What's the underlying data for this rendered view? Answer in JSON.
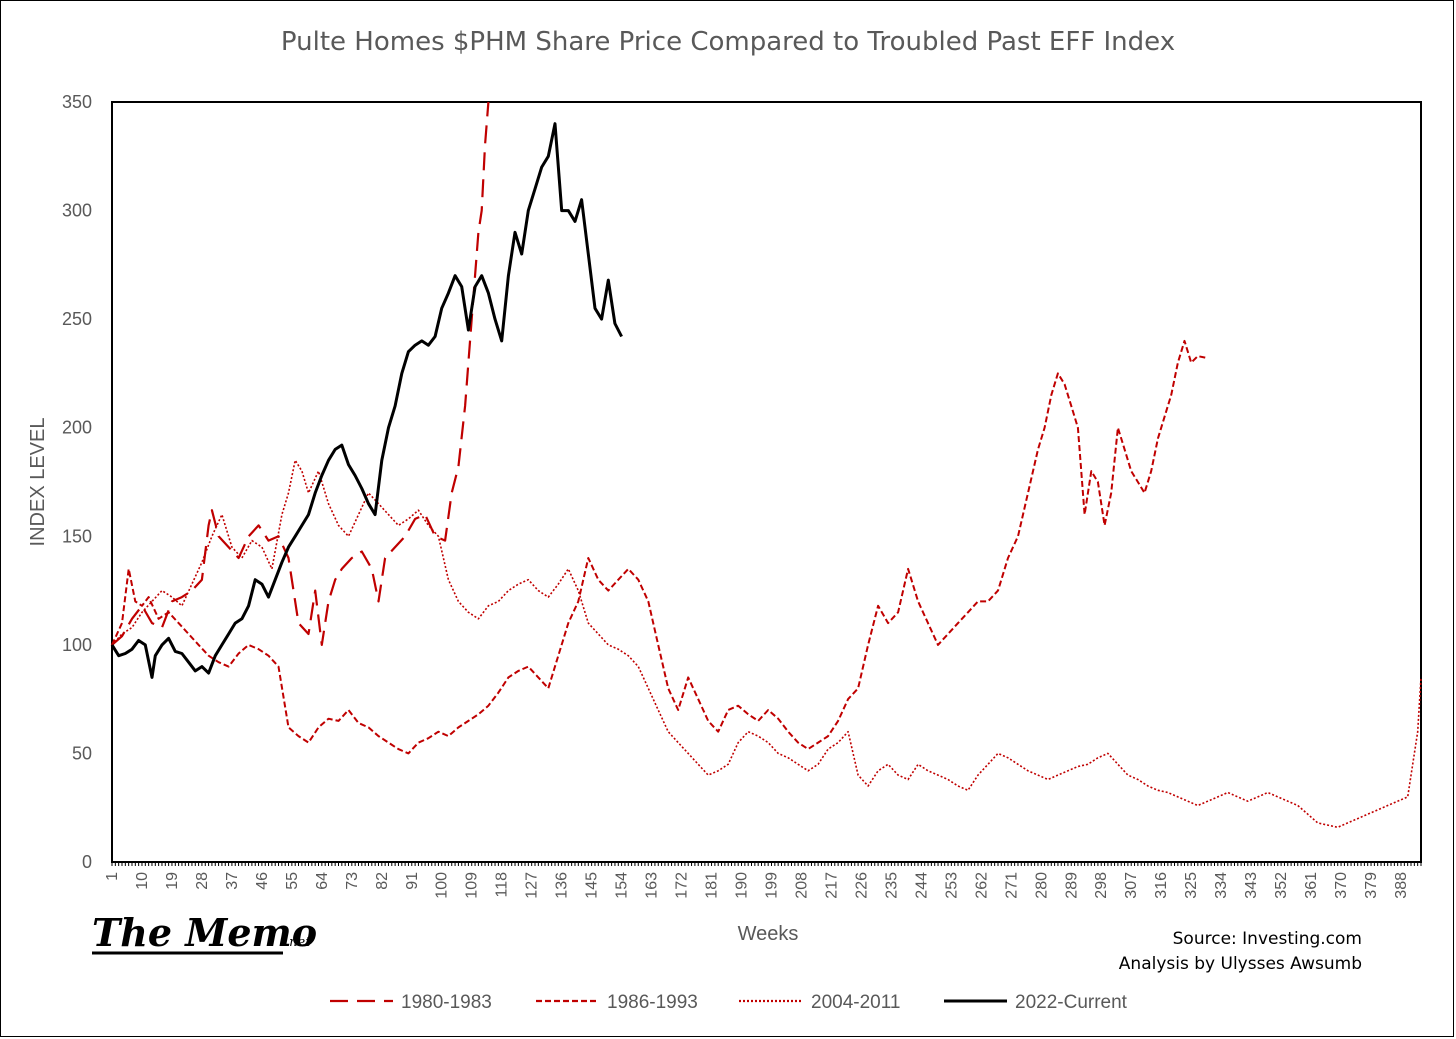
{
  "chart_data": {
    "type": "line",
    "title": "Pulte Homes $PHM Share Price Compared to Troubled Past EFF Index",
    "xlabel": "Weeks",
    "ylabel": "INDEX LEVEL",
    "ylim": [
      0,
      350
    ],
    "xlim": [
      1,
      394
    ],
    "yticks": [
      0,
      50,
      100,
      150,
      200,
      250,
      300,
      350
    ],
    "xticks": [
      "1",
      "10",
      "19",
      "28",
      "37",
      "46",
      "55",
      "64",
      "73",
      "82",
      "91",
      "100",
      "109",
      "118",
      "127",
      "136",
      "145",
      "154",
      "163",
      "172",
      "181",
      "190",
      "199",
      "208",
      "217",
      "226",
      "235",
      "244",
      "253",
      "262",
      "271",
      "280",
      "289",
      "298",
      "307",
      "316",
      "325",
      "334",
      "343",
      "352",
      "361",
      "370",
      "379",
      "388"
    ],
    "grid": false,
    "legend_position": "bottom",
    "series": [
      {
        "name": "1980-1983",
        "color": "#c00000",
        "dash": "long",
        "x": [
          1,
          4,
          7,
          10,
          13,
          16,
          19,
          22,
          25,
          28,
          30,
          31,
          33,
          36,
          39,
          42,
          45,
          48,
          51,
          54,
          57,
          60,
          62,
          64,
          66,
          68,
          70,
          73,
          76,
          79,
          81,
          83,
          86,
          89,
          92,
          95,
          98,
          101,
          103,
          105,
          107,
          109,
          111,
          112,
          113,
          114
        ],
        "y": [
          100,
          104,
          112,
          118,
          110,
          108,
          120,
          122,
          125,
          130,
          155,
          162,
          150,
          145,
          140,
          150,
          155,
          148,
          150,
          140,
          110,
          105,
          125,
          100,
          120,
          130,
          135,
          140,
          143,
          135,
          120,
          140,
          145,
          150,
          158,
          160,
          150,
          148,
          170,
          182,
          210,
          250,
          290,
          300,
          330,
          350
        ]
      },
      {
        "name": "1986-1993",
        "color": "#c00000",
        "dash": "short",
        "x": [
          1,
          4,
          6,
          8,
          10,
          12,
          15,
          18,
          21,
          24,
          27,
          30,
          33,
          36,
          39,
          42,
          45,
          48,
          51,
          54,
          57,
          60,
          63,
          66,
          69,
          72,
          75,
          78,
          81,
          84,
          87,
          90,
          93,
          96,
          99,
          102,
          105,
          108,
          111,
          114,
          117,
          120,
          123,
          126,
          129,
          132,
          135,
          138,
          141,
          144,
          147,
          150,
          153,
          156,
          159,
          162,
          165,
          168,
          171,
          174,
          177,
          180,
          183,
          186,
          189,
          192,
          195,
          198,
          201,
          204,
          207,
          210,
          213,
          216,
          219,
          222,
          225,
          228,
          231,
          234,
          237,
          240,
          243,
          246,
          249,
          252,
          255,
          258,
          261,
          264,
          267,
          270,
          273,
          276,
          279,
          281,
          283,
          285,
          287,
          289,
          291,
          293,
          295,
          297,
          299,
          301,
          303,
          305,
          307,
          309,
          311,
          313,
          315,
          317,
          319,
          321,
          323,
          325,
          327,
          330
        ],
        "y": [
          100,
          110,
          135,
          120,
          118,
          122,
          112,
          115,
          110,
          105,
          100,
          95,
          92,
          90,
          96,
          100,
          98,
          95,
          90,
          62,
          58,
          55,
          62,
          66,
          65,
          70,
          64,
          62,
          58,
          55,
          52,
          50,
          55,
          57,
          60,
          58,
          62,
          65,
          68,
          72,
          78,
          85,
          88,
          90,
          85,
          80,
          95,
          110,
          120,
          140,
          130,
          125,
          130,
          135,
          130,
          120,
          100,
          80,
          70,
          85,
          75,
          65,
          60,
          70,
          72,
          68,
          65,
          70,
          66,
          60,
          55,
          52,
          55,
          58,
          65,
          75,
          80,
          100,
          118,
          110,
          115,
          135,
          120,
          110,
          100,
          105,
          110,
          115,
          120,
          120,
          125,
          140,
          150,
          170,
          190,
          200,
          215,
          225,
          220,
          210,
          200,
          160,
          180,
          175,
          155,
          170,
          200,
          190,
          180,
          175,
          170,
          180,
          195,
          205,
          215,
          230,
          240,
          230,
          233,
          232
        ]
      },
      {
        "name": "2004-2011",
        "color": "#c00000",
        "dash": "dot",
        "x": [
          1,
          4,
          7,
          10,
          13,
          16,
          19,
          22,
          25,
          28,
          31,
          34,
          37,
          40,
          43,
          46,
          49,
          52,
          54,
          56,
          58,
          60,
          63,
          66,
          69,
          72,
          75,
          78,
          81,
          84,
          87,
          90,
          93,
          96,
          99,
          102,
          105,
          108,
          111,
          114,
          117,
          120,
          123,
          126,
          129,
          132,
          135,
          138,
          141,
          144,
          147,
          150,
          153,
          156,
          159,
          162,
          165,
          168,
          171,
          174,
          177,
          180,
          183,
          186,
          189,
          192,
          195,
          198,
          201,
          204,
          207,
          210,
          213,
          216,
          219,
          222,
          225,
          228,
          231,
          234,
          237,
          240,
          243,
          246,
          249,
          252,
          255,
          258,
          261,
          264,
          267,
          270,
          273,
          276,
          279,
          282,
          285,
          288,
          291,
          294,
          297,
          300,
          303,
          306,
          309,
          312,
          315,
          318,
          321,
          324,
          327,
          330,
          333,
          336,
          339,
          342,
          345,
          348,
          351,
          354,
          357,
          360,
          363,
          366,
          369,
          372,
          375,
          378,
          381,
          384,
          387,
          390,
          393,
          394
        ],
        "y": [
          100,
          105,
          108,
          115,
          120,
          125,
          122,
          118,
          128,
          138,
          150,
          160,
          145,
          140,
          148,
          145,
          135,
          160,
          170,
          185,
          180,
          170,
          180,
          165,
          155,
          150,
          160,
          170,
          165,
          160,
          155,
          158,
          162,
          155,
          150,
          130,
          120,
          115,
          112,
          118,
          120,
          125,
          128,
          130,
          125,
          122,
          128,
          135,
          125,
          110,
          105,
          100,
          98,
          95,
          90,
          80,
          70,
          60,
          55,
          50,
          45,
          40,
          42,
          45,
          55,
          60,
          58,
          55,
          50,
          48,
          45,
          42,
          45,
          52,
          55,
          60,
          40,
          35,
          42,
          45,
          40,
          38,
          45,
          42,
          40,
          38,
          35,
          33,
          40,
          45,
          50,
          48,
          45,
          42,
          40,
          38,
          40,
          42,
          44,
          45,
          48,
          50,
          45,
          40,
          38,
          35,
          33,
          32,
          30,
          28,
          26,
          28,
          30,
          32,
          30,
          28,
          30,
          32,
          30,
          28,
          26,
          22,
          18,
          17,
          16,
          18,
          20,
          22,
          24,
          26,
          28,
          30,
          60,
          85
        ]
      },
      {
        "name": "2022-Current",
        "color": "#000000",
        "dash": "solid",
        "x": [
          1,
          3,
          5,
          7,
          9,
          11,
          13,
          14,
          16,
          18,
          20,
          22,
          24,
          26,
          28,
          30,
          32,
          34,
          36,
          38,
          40,
          42,
          44,
          46,
          48,
          50,
          52,
          54,
          56,
          58,
          60,
          62,
          64,
          66,
          68,
          70,
          72,
          74,
          76,
          78,
          80,
          82,
          84,
          86,
          88,
          90,
          92,
          94,
          96,
          98,
          100,
          102,
          104,
          106,
          108,
          110,
          112,
          114,
          116,
          118,
          120,
          122,
          124,
          126,
          128,
          130,
          132,
          134,
          136,
          138,
          140,
          142,
          144,
          146,
          148,
          150,
          152,
          154
        ],
        "y": [
          100,
          95,
          96,
          98,
          102,
          100,
          85,
          95,
          100,
          103,
          97,
          96,
          92,
          88,
          90,
          87,
          95,
          100,
          105,
          110,
          112,
          118,
          130,
          128,
          122,
          130,
          138,
          145,
          150,
          155,
          160,
          170,
          178,
          185,
          190,
          192,
          183,
          178,
          172,
          165,
          160,
          185,
          200,
          210,
          225,
          235,
          238,
          240,
          238,
          242,
          255,
          262,
          270,
          265,
          245,
          265,
          270,
          262,
          250,
          240,
          270,
          290,
          280,
          300,
          310,
          320,
          325,
          340,
          300,
          300,
          295,
          305,
          280,
          255,
          250,
          268,
          248,
          242
        ]
      }
    ],
    "annotations": {
      "source": "Source: Investing.com",
      "analysis": "Analysis by Ulysses Awsumb"
    }
  },
  "brand": {
    "logo": "The Memo",
    "logo_suffix": ".net"
  }
}
